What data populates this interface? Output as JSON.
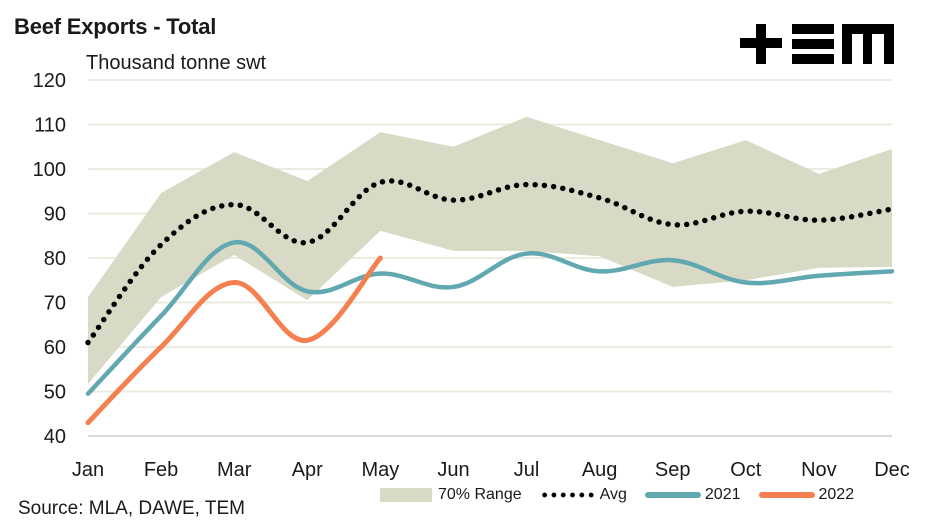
{
  "header": {
    "title": "Beef Exports - Total",
    "logo_text": "+EM",
    "source": "Source: MLA, DAWE, TEM"
  },
  "colors": {
    "range_fill": "#d9dac5",
    "avg": "#000000",
    "y2021": "#62a8b1",
    "y2022": "#f5804f",
    "grid": "#ebebe0"
  },
  "chart_data": {
    "type": "line",
    "title": "Beef Exports - Total",
    "subtitle": "Thousand tonne swt",
    "xlabel": "",
    "ylabel": "Thousand tonne swt",
    "ylim": [
      40,
      120
    ],
    "yticks": [
      40,
      50,
      60,
      70,
      80,
      90,
      100,
      110,
      120
    ],
    "grid": true,
    "legend_position": "bottom",
    "categories": [
      "Jan",
      "Feb",
      "Mar",
      "Apr",
      "May",
      "Jun",
      "Jul",
      "Aug",
      "Sep",
      "Oct",
      "Nov",
      "Dec"
    ],
    "range": {
      "name": "70% Range",
      "upper": [
        71.2,
        94.6,
        103.8,
        97.3,
        108.3,
        105.0,
        111.7,
        106.5,
        101.3,
        106.5,
        98.9,
        104.5
      ],
      "lower": [
        51.7,
        71.2,
        80.7,
        70.5,
        86.1,
        81.6,
        81.6,
        80.4,
        73.5,
        75.0,
        77.8,
        78.0
      ]
    },
    "series": [
      {
        "name": "Avg",
        "style": "dotted",
        "values": [
          61.0,
          83.0,
          92.0,
          83.5,
          97.0,
          93.0,
          96.5,
          93.5,
          87.5,
          90.5,
          88.5,
          91.0
        ]
      },
      {
        "name": "2021",
        "style": "solid",
        "values": [
          49.5,
          67.0,
          83.5,
          72.5,
          76.5,
          73.5,
          81.0,
          77.0,
          79.5,
          74.5,
          76.0,
          77.0
        ]
      },
      {
        "name": "2022",
        "style": "solid",
        "values": [
          43.0,
          60.0,
          74.5,
          61.5,
          80.0
        ]
      }
    ]
  }
}
